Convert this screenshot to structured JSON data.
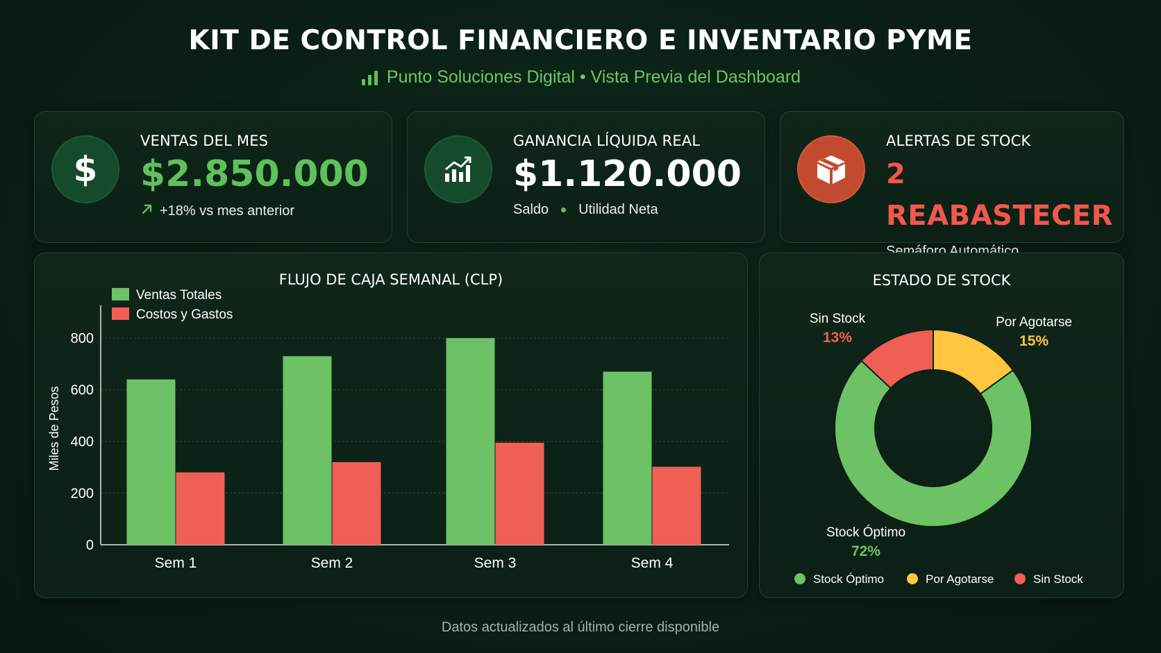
{
  "header": {
    "title": "KIT DE CONTROL FINANCIERO E INVENTARIO PYME",
    "subtitle": "Punto Soluciones Digital • Vista Previa del Dashboard",
    "subtitle_icon": "bar-chart-icon"
  },
  "kpis": [
    {
      "label": "VENTAS DEL MES",
      "value": "$2.850.000",
      "sub": "+18% vs mes anterior",
      "icon": "dollar-icon",
      "color": "#5ec15a"
    },
    {
      "label": "GANANCIA LÍQUIDA REAL",
      "value": "$1.120.000",
      "sub_a": "Saldo",
      "sub_b": "Utilidad Neta",
      "icon": "trend-chart-icon",
      "color": "#ffffff"
    },
    {
      "label": "ALERTAS DE STOCK",
      "value": "2 REABASTECER",
      "sub": "Semáforo Automático",
      "icon": "box-icon",
      "color": "#f0584b"
    }
  ],
  "cash_flow": {
    "title": "FLUJO DE CAJA SEMANAL (CLP)"
  },
  "stock": {
    "title": "ESTADO DE STOCK"
  },
  "footer": "Datos actualizados al último cierre disponible",
  "colors": {
    "green": "#6cc265",
    "red": "#ef5f54",
    "yellow": "#ffc640",
    "background": "#0a1f14"
  },
  "chart_data": [
    {
      "type": "bar",
      "title": "FLUJO DE CAJA SEMANAL (CLP)",
      "xlabel": "",
      "ylabel": "Miles de Pesos",
      "categories": [
        "Sem 1",
        "Sem 2",
        "Sem 3",
        "Sem 4"
      ],
      "series": [
        {
          "name": "Ventas Totales",
          "values": [
            640,
            730,
            800,
            670
          ],
          "color": "#6cc265"
        },
        {
          "name": "Costos y Gastos",
          "values": [
            280,
            320,
            395,
            302
          ],
          "color": "#ef5f54"
        }
      ],
      "ylim": [
        0,
        900
      ],
      "yticks": [
        0,
        200,
        400,
        600,
        800
      ],
      "grid": true,
      "legend": "top-left"
    },
    {
      "type": "pie",
      "title": "ESTADO DE STOCK",
      "donut": true,
      "slices": [
        {
          "name": "Stock Óptimo",
          "value": 72,
          "label": "72%",
          "color": "#6cc265"
        },
        {
          "name": "Sin Stock",
          "value": 13,
          "label": "13%",
          "color": "#ef5f54"
        },
        {
          "name": "Por Agotarse",
          "value": 15,
          "label": "15%",
          "color": "#ffc640"
        }
      ],
      "legend": "bottom"
    }
  ]
}
